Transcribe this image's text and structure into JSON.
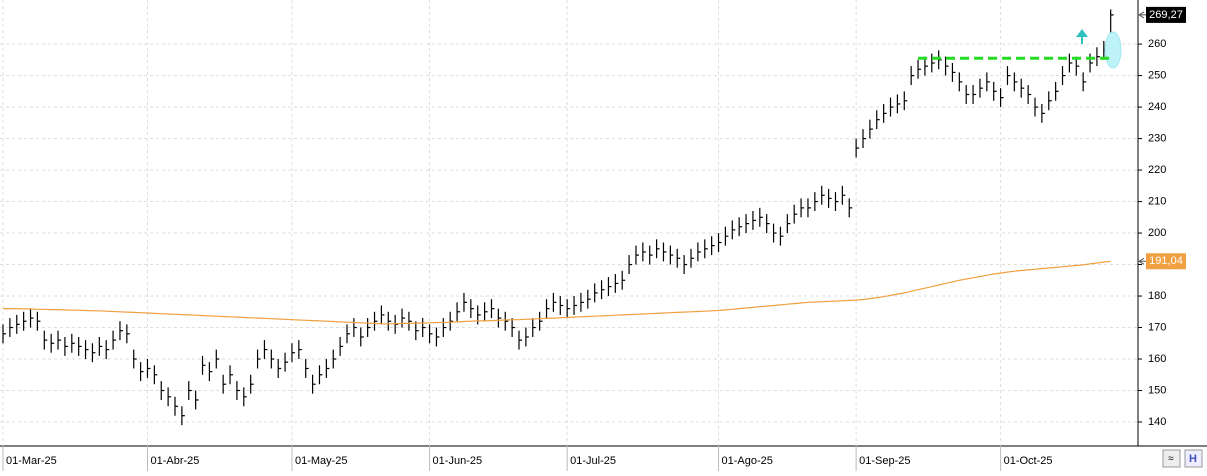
{
  "chart_data": {
    "type": "ohlc",
    "categories": [
      "01-Mar-25",
      null,
      null,
      null,
      null,
      null,
      null,
      null,
      null,
      null,
      null,
      null,
      null,
      null,
      null,
      null,
      null,
      null,
      null,
      null,
      null,
      "01-Abr-25",
      null,
      null,
      null,
      null,
      null,
      null,
      null,
      null,
      null,
      null,
      null,
      null,
      null,
      null,
      null,
      null,
      null,
      null,
      null,
      null,
      "01-May-25",
      null,
      null,
      null,
      null,
      null,
      null,
      null,
      null,
      null,
      null,
      null,
      null,
      null,
      null,
      null,
      null,
      null,
      null,
      null,
      "01-Jun-25",
      null,
      null,
      null,
      null,
      null,
      null,
      null,
      null,
      null,
      null,
      null,
      null,
      null,
      null,
      null,
      null,
      null,
      null,
      null,
      "01-Jul-25",
      null,
      null,
      null,
      null,
      null,
      null,
      null,
      null,
      null,
      null,
      null,
      null,
      null,
      null,
      null,
      null,
      null,
      null,
      null,
      null,
      null,
      "01-Ago-25",
      null,
      null,
      null,
      null,
      null,
      null,
      null,
      null,
      null,
      null,
      null,
      null,
      null,
      null,
      null,
      null,
      null,
      null,
      null,
      "01-Sep-25",
      null,
      null,
      null,
      null,
      null,
      null,
      null,
      null,
      null,
      null,
      null,
      null,
      null,
      null,
      null,
      null,
      null,
      null,
      null,
      null,
      "01-Oct-25",
      null,
      null,
      null,
      null,
      null,
      null,
      null,
      null,
      null,
      null,
      null,
      null,
      null,
      null,
      null,
      null
    ],
    "series": [
      {
        "color": "#000000",
        "close": [
          168,
          170,
          171,
          172,
          173,
          172,
          166,
          165,
          166,
          164,
          165,
          164,
          163,
          162,
          164,
          163,
          166,
          169,
          168,
          160,
          156,
          157,
          155,
          150,
          148,
          145,
          142,
          150,
          147,
          158,
          156,
          160,
          152,
          155,
          150,
          148,
          152,
          160,
          163,
          160,
          157,
          159,
          162,
          163,
          157,
          152,
          155,
          157,
          160,
          164,
          168,
          170,
          167,
          170,
          172,
          174,
          172,
          171,
          173,
          172,
          169,
          170,
          168,
          167,
          170,
          172,
          175,
          178,
          176,
          174,
          175,
          176,
          173,
          172,
          170,
          166,
          167,
          170,
          172,
          176,
          178,
          177,
          176,
          177,
          178,
          179,
          181,
          182,
          183,
          184,
          185,
          190,
          193,
          194,
          193,
          195,
          194,
          193,
          192,
          190,
          192,
          194,
          195,
          196,
          197,
          199,
          201,
          202,
          203,
          204,
          205,
          203,
          200,
          199,
          203,
          206,
          208,
          208,
          210,
          212,
          211,
          210,
          212,
          208,
          227,
          230,
          233,
          236,
          238,
          240,
          241,
          242,
          250,
          252,
          253,
          254,
          255,
          253,
          251,
          248,
          244,
          244,
          246,
          248,
          245,
          243,
          250,
          248,
          246,
          244,
          240,
          238,
          242,
          245,
          250,
          254,
          253,
          248,
          254,
          256,
          258,
          269.27
        ],
        "high": [
          171,
          173,
          174,
          175,
          176,
          175,
          169,
          168,
          169,
          167,
          168,
          167,
          166,
          165,
          167,
          166,
          169,
          172,
          171,
          163,
          159,
          160,
          158,
          153,
          151,
          148,
          145,
          153,
          150,
          161,
          159,
          163,
          155,
          158,
          153,
          151,
          155,
          163,
          166,
          163,
          160,
          162,
          165,
          166,
          160,
          155,
          158,
          160,
          163,
          167,
          171,
          173,
          170,
          173,
          175,
          177,
          175,
          174,
          176,
          175,
          172,
          173,
          171,
          170,
          173,
          175,
          178,
          181,
          179,
          177,
          178,
          179,
          176,
          175,
          173,
          169,
          170,
          173,
          175,
          179,
          181,
          180,
          179,
          180,
          181,
          182,
          184,
          185,
          186,
          187,
          188,
          193,
          196,
          197,
          196,
          198,
          197,
          196,
          195,
          193,
          195,
          197,
          198,
          199,
          200,
          202,
          204,
          205,
          206,
          207,
          208,
          206,
          203,
          202,
          206,
          209,
          211,
          211,
          213,
          215,
          214,
          213,
          215,
          211,
          230,
          233,
          236,
          239,
          241,
          243,
          244,
          245,
          253,
          255,
          256,
          257,
          258,
          256,
          254,
          251,
          247,
          247,
          249,
          251,
          248,
          246,
          253,
          251,
          249,
          247,
          243,
          241,
          245,
          248,
          253,
          257,
          256,
          251,
          257,
          259,
          261,
          271
        ],
        "low": [
          165,
          167,
          168,
          169,
          170,
          169,
          163,
          162,
          163,
          161,
          162,
          161,
          160,
          159,
          161,
          160,
          163,
          166,
          165,
          157,
          153,
          154,
          152,
          147,
          145,
          142,
          139,
          147,
          144,
          155,
          153,
          157,
          149,
          152,
          147,
          145,
          149,
          157,
          160,
          157,
          154,
          156,
          159,
          160,
          154,
          149,
          152,
          154,
          157,
          161,
          165,
          167,
          164,
          167,
          169,
          171,
          169,
          168,
          170,
          169,
          166,
          167,
          165,
          164,
          167,
          169,
          172,
          175,
          173,
          171,
          172,
          173,
          170,
          169,
          167,
          163,
          164,
          167,
          169,
          173,
          175,
          174,
          173,
          174,
          175,
          176,
          178,
          179,
          180,
          181,
          182,
          187,
          190,
          191,
          190,
          192,
          191,
          190,
          189,
          187,
          189,
          191,
          192,
          193,
          194,
          196,
          198,
          199,
          200,
          201,
          202,
          200,
          197,
          196,
          200,
          203,
          205,
          205,
          207,
          209,
          208,
          207,
          209,
          205,
          224,
          227,
          230,
          233,
          235,
          237,
          238,
          239,
          247,
          249,
          250,
          251,
          252,
          250,
          248,
          245,
          241,
          241,
          243,
          245,
          242,
          240,
          247,
          245,
          243,
          241,
          237,
          235,
          239,
          242,
          247,
          251,
          250,
          245,
          251,
          253,
          255,
          263
        ],
        "last_label": "269,27"
      },
      {
        "color": "#f0a040",
        "values": [
          176,
          176,
          176,
          175.9,
          175.9,
          175.8,
          175.8,
          175.7,
          175.7,
          175.6,
          175.5,
          175.5,
          175.4,
          175.3,
          175.3,
          175.2,
          175.1,
          175,
          174.9,
          174.8,
          174.7,
          174.6,
          174.5,
          174.4,
          174.3,
          174.2,
          174.1,
          174,
          173.9,
          173.8,
          173.7,
          173.6,
          173.5,
          173.4,
          173.3,
          173.2,
          173.1,
          173,
          172.9,
          172.8,
          172.7,
          172.6,
          172.5,
          172.4,
          172.3,
          172.2,
          172.1,
          172,
          171.9,
          171.8,
          171.7,
          171.6,
          171.5,
          171.4,
          171.3,
          171.2,
          171.2,
          171.2,
          171.3,
          171.3,
          171.4,
          171.4,
          171.5,
          171.6,
          171.6,
          171.7,
          171.8,
          171.9,
          172,
          172.1,
          172.1,
          172.2,
          172.3,
          172.4,
          172.5,
          172.5,
          172.6,
          172.7,
          172.8,
          172.9,
          173,
          173.1,
          173.2,
          173.3,
          173.4,
          173.5,
          173.6,
          173.7,
          173.8,
          173.9,
          174,
          174.1,
          174.2,
          174.3,
          174.4,
          174.5,
          174.6,
          174.7,
          174.8,
          174.9,
          175,
          175.1,
          175.2,
          175.3,
          175.4,
          175.6,
          175.8,
          176,
          176.2,
          176.4,
          176.6,
          176.8,
          177,
          177.2,
          177.4,
          177.6,
          177.8,
          178,
          178.1,
          178.2,
          178.3,
          178.4,
          178.5,
          178.6,
          178.7,
          178.9,
          179.2,
          179.5,
          179.8,
          180.2,
          180.6,
          181,
          181.5,
          182,
          182.5,
          183,
          183.5,
          184,
          184.5,
          185,
          185.4,
          185.8,
          186.2,
          186.6,
          187,
          187.3,
          187.6,
          187.9,
          188.1,
          188.3,
          188.5,
          188.7,
          188.9,
          189.1,
          189.3,
          189.5,
          189.7,
          189.9,
          190.2,
          190.5,
          190.8,
          191.04
        ],
        "last_label": "191,04"
      }
    ],
    "annotations": [
      {
        "type": "hline",
        "value": 255.5,
        "color": "#22dd22",
        "from": 133,
        "to": 161
      }
    ],
    "ylim": [
      132.7,
      274
    ],
    "yticks": [
      140,
      150,
      160,
      170,
      180,
      190,
      200,
      210,
      220,
      230,
      240,
      250,
      260
    ],
    "grid": true
  }
}
